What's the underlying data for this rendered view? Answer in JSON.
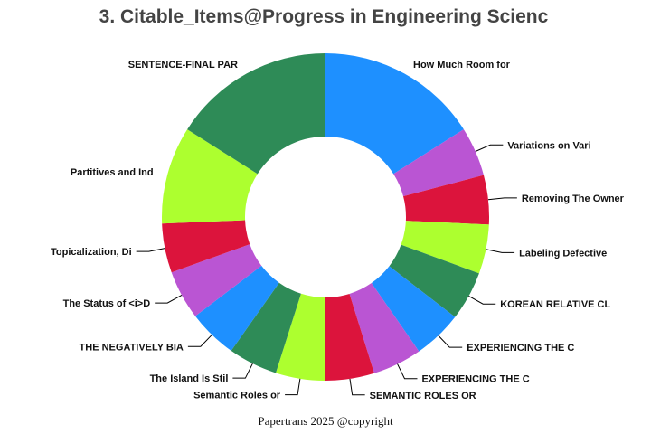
{
  "chart_data": {
    "type": "pie",
    "donut": true,
    "title": "3. Citable_Items@Progress in Engineering Scienc",
    "footer": "Papertrans 2025 @copyright",
    "slices": [
      {
        "label": "How Much Room for",
        "value": 15.8,
        "color": "#1E90FF"
      },
      {
        "label": "Variations on Vari",
        "value": 4.8,
        "color": "#BA55D3"
      },
      {
        "label": "Removing The Owner",
        "value": 4.8,
        "color": "#DC143C"
      },
      {
        "label": "Labeling Defective",
        "value": 4.8,
        "color": "#ADFF2F"
      },
      {
        "label": "KOREAN RELATIVE CL",
        "value": 4.8,
        "color": "#2E8B57"
      },
      {
        "label": "EXPERIENCING THE C",
        "value": 4.8,
        "color": "#1E90FF"
      },
      {
        "label": "EXPERIENCING THE C",
        "value": 4.8,
        "color": "#BA55D3"
      },
      {
        "label": "SEMANTIC ROLES OR",
        "value": 4.8,
        "color": "#DC143C"
      },
      {
        "label": "Semantic Roles or",
        "value": 4.8,
        "color": "#ADFF2F"
      },
      {
        "label": "The Island Is Stil",
        "value": 4.8,
        "color": "#2E8B57"
      },
      {
        "label": "THE NEGATIVELY BIA",
        "value": 4.8,
        "color": "#1E90FF"
      },
      {
        "label": "The Status of <i>D",
        "value": 4.8,
        "color": "#BA55D3"
      },
      {
        "label": "Topicalization, Di",
        "value": 4.8,
        "color": "#DC143C"
      },
      {
        "label": "Partitives and Ind",
        "value": 9.5,
        "color": "#ADFF2F"
      },
      {
        "label": "SENTENCE-FINAL PAR",
        "value": 15.8,
        "color": "#2E8B57"
      }
    ]
  }
}
